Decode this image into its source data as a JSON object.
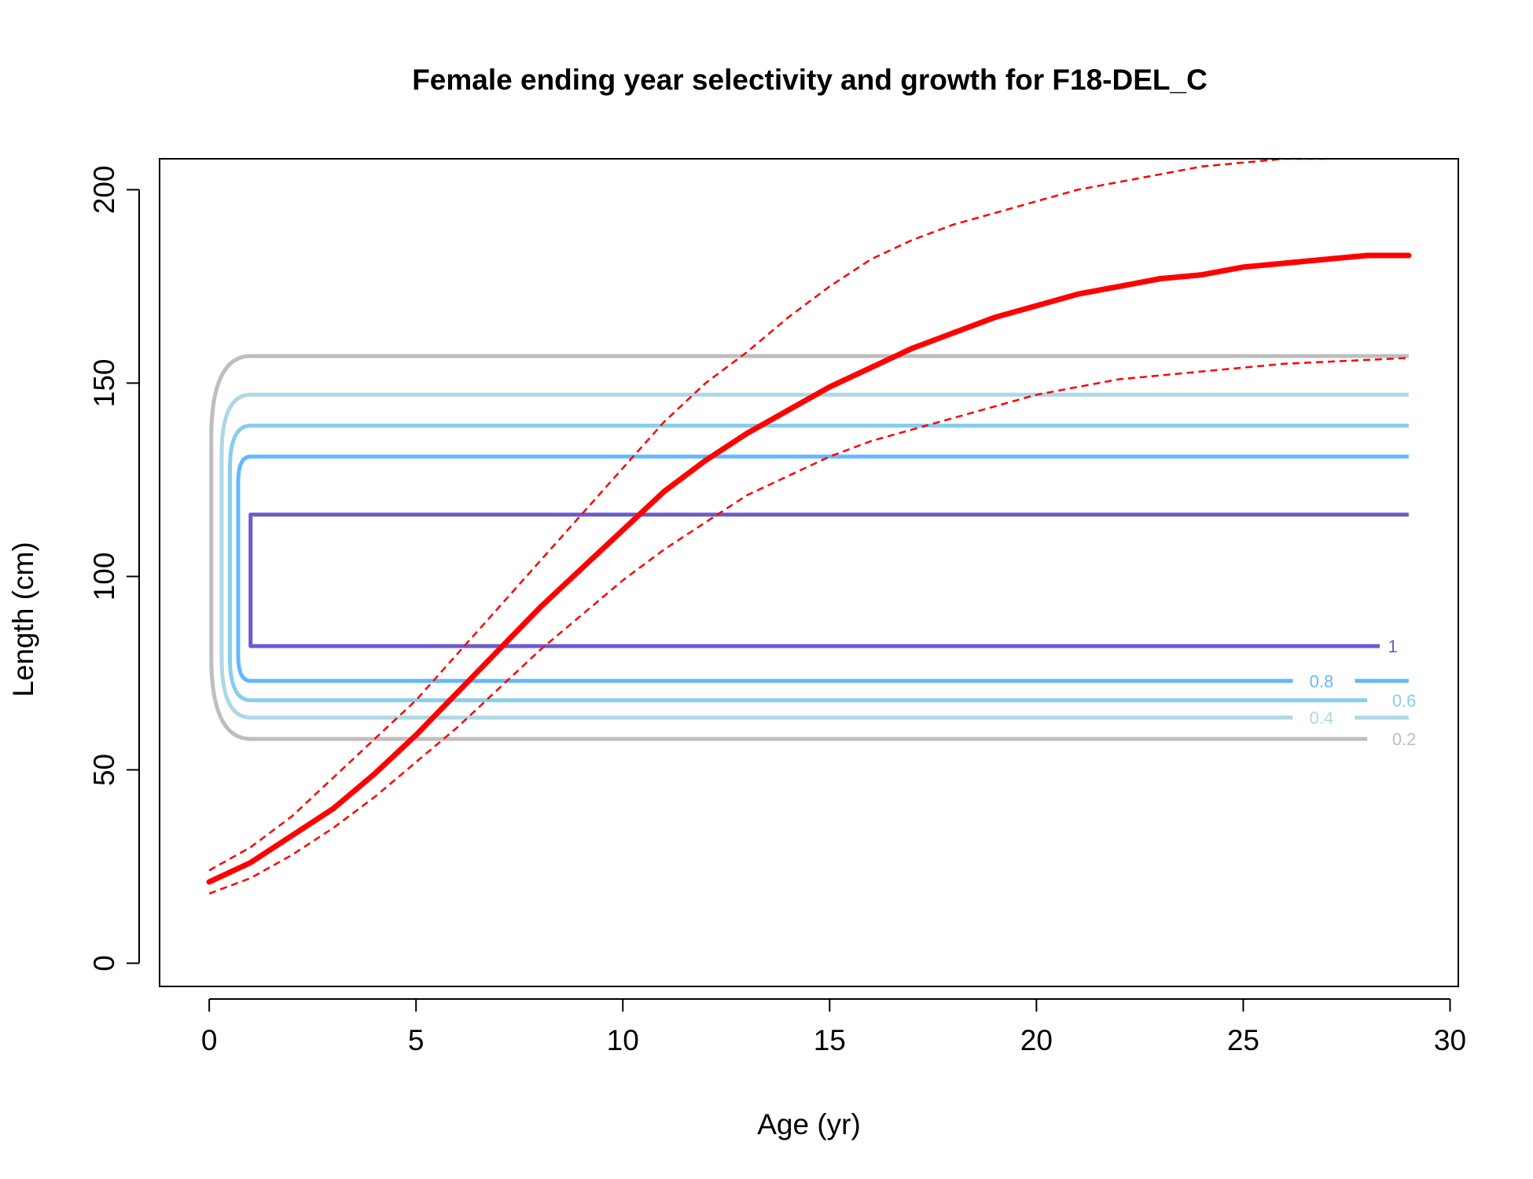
{
  "chart_data": {
    "type": "line",
    "title": "Female ending year selectivity and growth for F18-DEL_C",
    "xlabel": "Age (yr)",
    "ylabel": "Length (cm)",
    "xlim": [
      -1.2,
      30.2
    ],
    "ylim": [
      -6,
      208
    ],
    "xticks": [
      0,
      5,
      10,
      15,
      20,
      25,
      30
    ],
    "yticks": [
      0,
      50,
      100,
      150,
      200
    ],
    "grid": false,
    "growth": {
      "color": "#ff0000",
      "x": [
        0,
        1,
        2,
        3,
        4,
        5,
        6,
        7,
        8,
        9,
        10,
        11,
        12,
        13,
        14,
        15,
        16,
        17,
        18,
        19,
        20,
        21,
        22,
        23,
        24,
        25,
        26,
        27,
        28,
        29
      ],
      "mean": [
        21,
        26,
        33,
        40,
        49,
        59,
        70,
        81,
        92,
        102,
        112,
        122,
        130,
        137,
        143,
        149,
        154,
        159,
        163,
        167,
        170,
        173,
        175,
        177,
        178,
        180,
        181,
        182,
        183,
        183
      ],
      "upper": [
        24,
        30,
        38,
        48,
        58,
        68,
        80,
        92,
        104,
        116,
        128,
        140,
        150,
        158,
        167,
        175,
        182,
        187,
        191,
        194,
        197,
        200,
        202,
        204,
        206,
        207,
        208,
        208,
        208.5,
        209
      ],
      "lower": [
        18,
        22,
        28,
        35,
        43,
        52,
        61,
        71,
        81,
        90,
        99,
        107,
        114,
        121,
        126,
        131,
        135,
        138,
        141,
        144,
        147,
        149,
        151,
        152,
        153,
        154,
        155,
        155.5,
        156,
        156.5
      ]
    },
    "selectivity_contours": [
      {
        "level": "0.2",
        "color": "#bebebe",
        "upper": 157,
        "lower": 58
      },
      {
        "level": "0.4",
        "color": "#add8e6",
        "upper": 147,
        "lower": 63.5
      },
      {
        "level": "0.6",
        "color": "#87ceeb",
        "upper": 139,
        "lower": 68
      },
      {
        "level": "0.8",
        "color": "#63b8ff",
        "upper": 131,
        "lower": 73
      },
      {
        "level": "1",
        "color": "#6a5acd",
        "upper": 116,
        "lower": 82
      }
    ]
  }
}
